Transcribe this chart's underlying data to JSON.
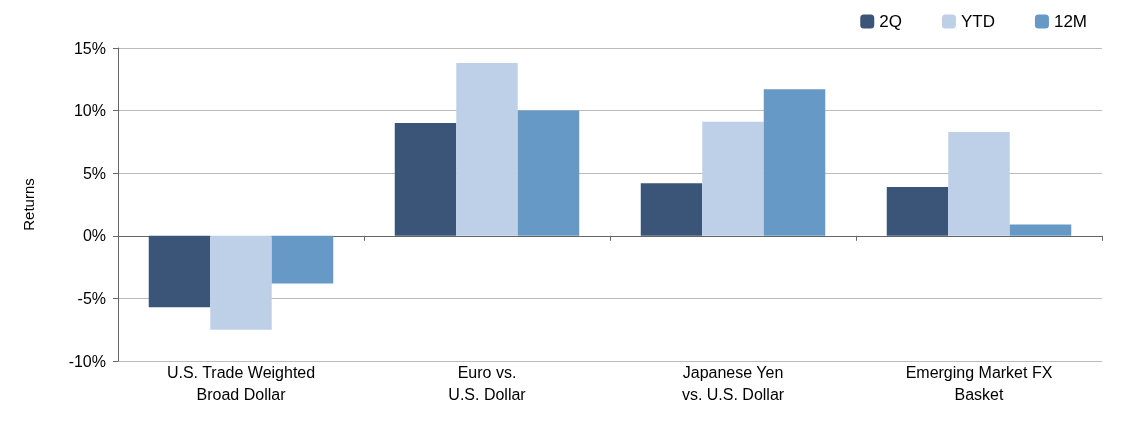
{
  "chart_data": {
    "type": "bar",
    "ylabel": "Returns",
    "categories": [
      "U.S. Trade Weighted\nBroad Dollar",
      "Euro vs.\nU.S. Dollar",
      "Japanese Yen\nvs. U.S. Dollar",
      "Emerging Market FX\nBasket"
    ],
    "series": [
      {
        "name": "2Q",
        "color": "#3b5578",
        "values": [
          -5.7,
          9.0,
          4.2,
          3.9
        ]
      },
      {
        "name": "YTD",
        "color": "#bdd0e8",
        "values": [
          -7.5,
          13.8,
          9.1,
          8.3
        ]
      },
      {
        "name": "12M",
        "color": "#6699c6",
        "values": [
          -3.8,
          10.0,
          11.7,
          0.9
        ]
      }
    ],
    "ylim": [
      -10,
      15
    ],
    "yticks": [
      {
        "value": -10,
        "label": "-10%"
      },
      {
        "value": -5,
        "label": "-5%"
      },
      {
        "value": 0,
        "label": "0%"
      },
      {
        "value": 5,
        "label": "5%"
      },
      {
        "value": 10,
        "label": "10%"
      },
      {
        "value": 15,
        "label": "15%"
      }
    ],
    "grid": "y",
    "legend": "top right"
  }
}
